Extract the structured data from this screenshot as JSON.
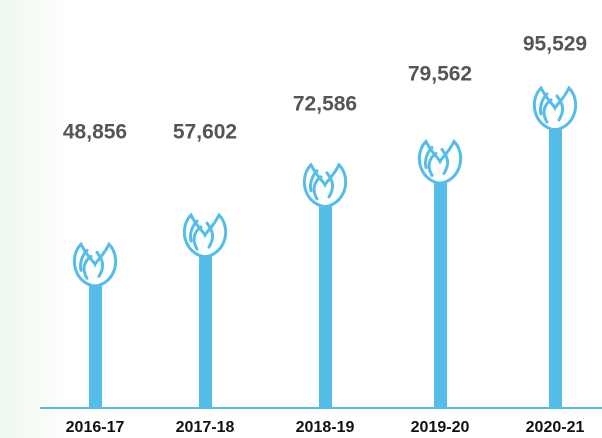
{
  "chart_data": {
    "type": "pictograph-bar",
    "categories": [
      "2016-17",
      "2017-18",
      "2018-19",
      "2019-20",
      "2020-21"
    ],
    "values": [
      48856,
      57602,
      72586,
      79562,
      95529
    ],
    "value_labels": [
      "48,856",
      "57,602",
      "72,586",
      "79,562",
      "95,529"
    ],
    "color": "#55bde9"
  }
}
